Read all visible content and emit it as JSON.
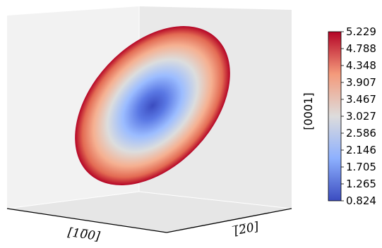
{
  "chart_data": {
    "type": "surface-3d",
    "axes": {
      "x_label": "[10̅0]",
      "y_label": "[̅2̅0]",
      "z_label": "[0001]"
    },
    "colorbar": {
      "colormap": "coolwarm",
      "min": 0.824,
      "max": 5.229,
      "ticks": [
        "5.229",
        "4.788",
        "4.348",
        "3.907",
        "3.467",
        "3.027",
        "2.586",
        "2.146",
        "1.705",
        "1.265",
        "0.824"
      ]
    },
    "surface": {
      "shape": "ellipsoid",
      "min_value": 0.824,
      "max_value": 5.229
    }
  }
}
